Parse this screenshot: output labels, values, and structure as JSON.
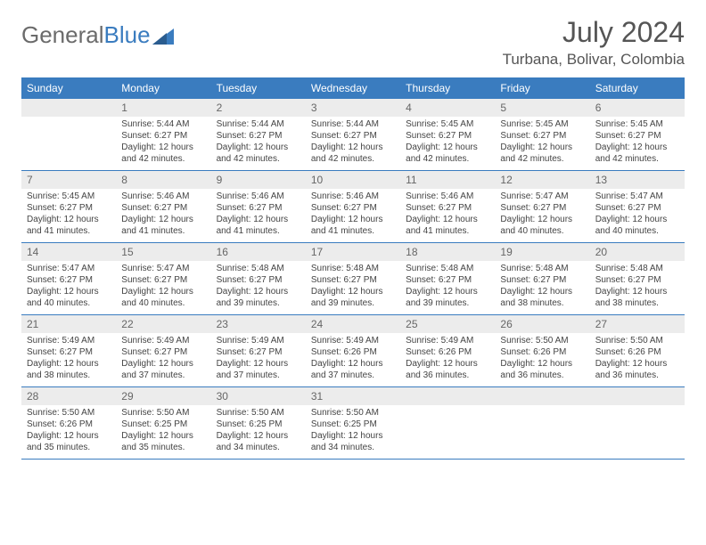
{
  "logo": {
    "text1": "General",
    "text2": "Blue"
  },
  "title": "July 2024",
  "location": "Turbana, Bolivar, Colombia",
  "colors": {
    "header_bg": "#3a7cbf",
    "header_text": "#ffffff",
    "daynum_bg": "#ececec",
    "border": "#3a7cbf",
    "body_text": "#444444"
  },
  "weekdays": [
    "Sunday",
    "Monday",
    "Tuesday",
    "Wednesday",
    "Thursday",
    "Friday",
    "Saturday"
  ],
  "weeks": [
    [
      {
        "day": "",
        "sunrise": "",
        "sunset": "",
        "daylight": ""
      },
      {
        "day": "1",
        "sunrise": "Sunrise: 5:44 AM",
        "sunset": "Sunset: 6:27 PM",
        "daylight": "Daylight: 12 hours and 42 minutes."
      },
      {
        "day": "2",
        "sunrise": "Sunrise: 5:44 AM",
        "sunset": "Sunset: 6:27 PM",
        "daylight": "Daylight: 12 hours and 42 minutes."
      },
      {
        "day": "3",
        "sunrise": "Sunrise: 5:44 AM",
        "sunset": "Sunset: 6:27 PM",
        "daylight": "Daylight: 12 hours and 42 minutes."
      },
      {
        "day": "4",
        "sunrise": "Sunrise: 5:45 AM",
        "sunset": "Sunset: 6:27 PM",
        "daylight": "Daylight: 12 hours and 42 minutes."
      },
      {
        "day": "5",
        "sunrise": "Sunrise: 5:45 AM",
        "sunset": "Sunset: 6:27 PM",
        "daylight": "Daylight: 12 hours and 42 minutes."
      },
      {
        "day": "6",
        "sunrise": "Sunrise: 5:45 AM",
        "sunset": "Sunset: 6:27 PM",
        "daylight": "Daylight: 12 hours and 42 minutes."
      }
    ],
    [
      {
        "day": "7",
        "sunrise": "Sunrise: 5:45 AM",
        "sunset": "Sunset: 6:27 PM",
        "daylight": "Daylight: 12 hours and 41 minutes."
      },
      {
        "day": "8",
        "sunrise": "Sunrise: 5:46 AM",
        "sunset": "Sunset: 6:27 PM",
        "daylight": "Daylight: 12 hours and 41 minutes."
      },
      {
        "day": "9",
        "sunrise": "Sunrise: 5:46 AM",
        "sunset": "Sunset: 6:27 PM",
        "daylight": "Daylight: 12 hours and 41 minutes."
      },
      {
        "day": "10",
        "sunrise": "Sunrise: 5:46 AM",
        "sunset": "Sunset: 6:27 PM",
        "daylight": "Daylight: 12 hours and 41 minutes."
      },
      {
        "day": "11",
        "sunrise": "Sunrise: 5:46 AM",
        "sunset": "Sunset: 6:27 PM",
        "daylight": "Daylight: 12 hours and 41 minutes."
      },
      {
        "day": "12",
        "sunrise": "Sunrise: 5:47 AM",
        "sunset": "Sunset: 6:27 PM",
        "daylight": "Daylight: 12 hours and 40 minutes."
      },
      {
        "day": "13",
        "sunrise": "Sunrise: 5:47 AM",
        "sunset": "Sunset: 6:27 PM",
        "daylight": "Daylight: 12 hours and 40 minutes."
      }
    ],
    [
      {
        "day": "14",
        "sunrise": "Sunrise: 5:47 AM",
        "sunset": "Sunset: 6:27 PM",
        "daylight": "Daylight: 12 hours and 40 minutes."
      },
      {
        "day": "15",
        "sunrise": "Sunrise: 5:47 AM",
        "sunset": "Sunset: 6:27 PM",
        "daylight": "Daylight: 12 hours and 40 minutes."
      },
      {
        "day": "16",
        "sunrise": "Sunrise: 5:48 AM",
        "sunset": "Sunset: 6:27 PM",
        "daylight": "Daylight: 12 hours and 39 minutes."
      },
      {
        "day": "17",
        "sunrise": "Sunrise: 5:48 AM",
        "sunset": "Sunset: 6:27 PM",
        "daylight": "Daylight: 12 hours and 39 minutes."
      },
      {
        "day": "18",
        "sunrise": "Sunrise: 5:48 AM",
        "sunset": "Sunset: 6:27 PM",
        "daylight": "Daylight: 12 hours and 39 minutes."
      },
      {
        "day": "19",
        "sunrise": "Sunrise: 5:48 AM",
        "sunset": "Sunset: 6:27 PM",
        "daylight": "Daylight: 12 hours and 38 minutes."
      },
      {
        "day": "20",
        "sunrise": "Sunrise: 5:48 AM",
        "sunset": "Sunset: 6:27 PM",
        "daylight": "Daylight: 12 hours and 38 minutes."
      }
    ],
    [
      {
        "day": "21",
        "sunrise": "Sunrise: 5:49 AM",
        "sunset": "Sunset: 6:27 PM",
        "daylight": "Daylight: 12 hours and 38 minutes."
      },
      {
        "day": "22",
        "sunrise": "Sunrise: 5:49 AM",
        "sunset": "Sunset: 6:27 PM",
        "daylight": "Daylight: 12 hours and 37 minutes."
      },
      {
        "day": "23",
        "sunrise": "Sunrise: 5:49 AM",
        "sunset": "Sunset: 6:27 PM",
        "daylight": "Daylight: 12 hours and 37 minutes."
      },
      {
        "day": "24",
        "sunrise": "Sunrise: 5:49 AM",
        "sunset": "Sunset: 6:26 PM",
        "daylight": "Daylight: 12 hours and 37 minutes."
      },
      {
        "day": "25",
        "sunrise": "Sunrise: 5:49 AM",
        "sunset": "Sunset: 6:26 PM",
        "daylight": "Daylight: 12 hours and 36 minutes."
      },
      {
        "day": "26",
        "sunrise": "Sunrise: 5:50 AM",
        "sunset": "Sunset: 6:26 PM",
        "daylight": "Daylight: 12 hours and 36 minutes."
      },
      {
        "day": "27",
        "sunrise": "Sunrise: 5:50 AM",
        "sunset": "Sunset: 6:26 PM",
        "daylight": "Daylight: 12 hours and 36 minutes."
      }
    ],
    [
      {
        "day": "28",
        "sunrise": "Sunrise: 5:50 AM",
        "sunset": "Sunset: 6:26 PM",
        "daylight": "Daylight: 12 hours and 35 minutes."
      },
      {
        "day": "29",
        "sunrise": "Sunrise: 5:50 AM",
        "sunset": "Sunset: 6:25 PM",
        "daylight": "Daylight: 12 hours and 35 minutes."
      },
      {
        "day": "30",
        "sunrise": "Sunrise: 5:50 AM",
        "sunset": "Sunset: 6:25 PM",
        "daylight": "Daylight: 12 hours and 34 minutes."
      },
      {
        "day": "31",
        "sunrise": "Sunrise: 5:50 AM",
        "sunset": "Sunset: 6:25 PM",
        "daylight": "Daylight: 12 hours and 34 minutes."
      },
      {
        "day": "",
        "sunrise": "",
        "sunset": "",
        "daylight": ""
      },
      {
        "day": "",
        "sunrise": "",
        "sunset": "",
        "daylight": ""
      },
      {
        "day": "",
        "sunrise": "",
        "sunset": "",
        "daylight": ""
      }
    ]
  ]
}
